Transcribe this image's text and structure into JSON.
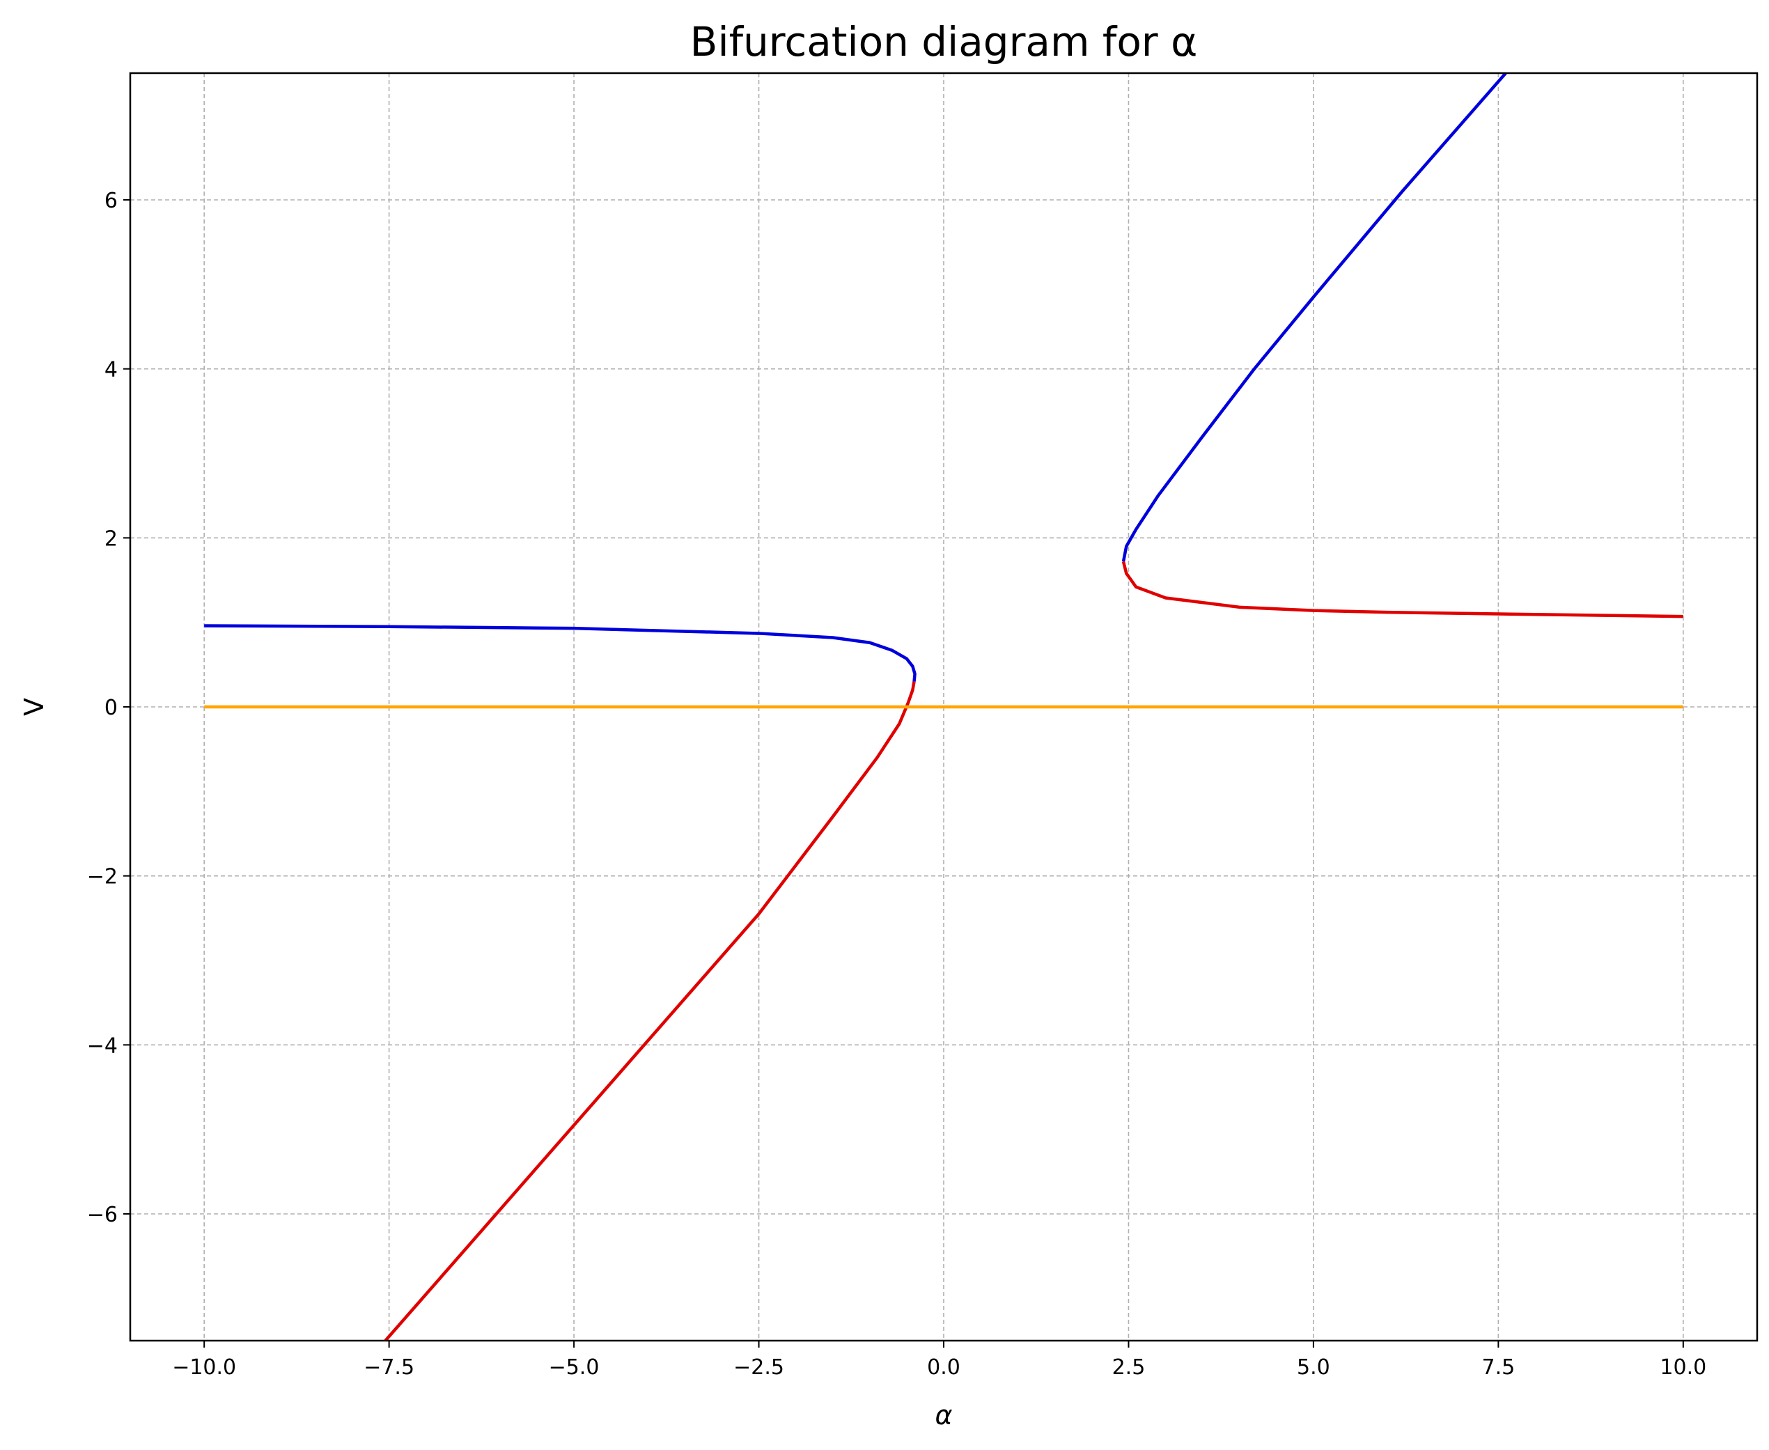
{
  "chart_data": {
    "type": "line",
    "title": "Bifurcation diagram for α",
    "xlabel": "α",
    "ylabel": "V",
    "xlim": [
      -11,
      11
    ],
    "ylim": [
      -7.5,
      7.5
    ],
    "grid": true,
    "xticks": [
      -10.0,
      -7.5,
      -5.0,
      -2.5,
      0.0,
      2.5,
      5.0,
      7.5,
      10.0
    ],
    "xtick_labels": [
      "−10.0",
      "−7.5",
      "−5.0",
      "−2.5",
      "0.0",
      "2.5",
      "5.0",
      "7.5",
      "10.0"
    ],
    "yticks": [
      -6,
      -4,
      -2,
      0,
      2,
      4,
      6
    ],
    "ytick_labels": [
      "−6",
      "−4",
      "−2",
      "0",
      "2",
      "4",
      "6"
    ],
    "series": [
      {
        "color": "#0000dd",
        "points": [
          [
            -10,
            0.96
          ],
          [
            -7.5,
            0.95
          ],
          [
            -5,
            0.93
          ],
          [
            -2.5,
            0.87
          ],
          [
            -1.5,
            0.82
          ],
          [
            -1,
            0.76
          ],
          [
            -0.7,
            0.67
          ],
          [
            -0.5,
            0.57
          ],
          [
            -0.42,
            0.48
          ],
          [
            -0.39,
            0.39
          ],
          [
            -0.4,
            0.3
          ]
        ]
      },
      {
        "color": "#e00000",
        "points": [
          [
            -0.4,
            0.3
          ],
          [
            -0.42,
            0.2
          ],
          [
            -0.48,
            0.05
          ],
          [
            -0.6,
            -0.2
          ],
          [
            -0.9,
            -0.6
          ],
          [
            -1.5,
            -1.3
          ],
          [
            -2.5,
            -2.45
          ],
          [
            -5,
            -4.95
          ],
          [
            -7.55,
            -7.5
          ]
        ]
      },
      {
        "color": "#0000dd",
        "points": [
          [
            2.43,
            1.72
          ],
          [
            2.47,
            1.9
          ],
          [
            2.6,
            2.1
          ],
          [
            2.9,
            2.5
          ],
          [
            3.5,
            3.2
          ],
          [
            4.2,
            4.0
          ],
          [
            5,
            4.85
          ],
          [
            6.2,
            6.1
          ],
          [
            7.6,
            7.5
          ]
        ]
      },
      {
        "color": "#e00000",
        "points": [
          [
            2.43,
            1.72
          ],
          [
            2.47,
            1.58
          ],
          [
            2.6,
            1.42
          ],
          [
            3,
            1.29
          ],
          [
            4,
            1.18
          ],
          [
            5,
            1.14
          ],
          [
            6,
            1.12
          ],
          [
            7.5,
            1.1
          ],
          [
            10,
            1.07
          ]
        ]
      },
      {
        "color": "#ffa500",
        "points": [
          [
            -10,
            0
          ],
          [
            10,
            0
          ]
        ]
      }
    ]
  }
}
